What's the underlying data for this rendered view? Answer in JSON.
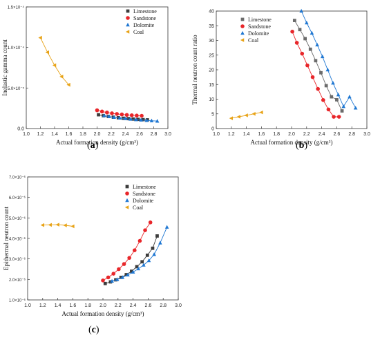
{
  "panels": {
    "a": "a",
    "b": "b",
    "c": "c"
  },
  "chart_data": [
    {
      "id": "a",
      "type": "scatter",
      "xlabel": "Actual formation density (g/cm³)",
      "ylabel": "Inelastic gamma count",
      "xlim": [
        1.0,
        3.0
      ],
      "xticks": [
        "1.0",
        "1.2",
        "1.4",
        "1.6",
        "1.8",
        "2.0",
        "2.2",
        "2.4",
        "2.6",
        "2.8",
        "3.0"
      ],
      "ylim": [
        0,
        0.00015
      ],
      "yticks": [
        {
          "v": 0,
          "label": "0.0"
        },
        {
          "v": 5e-05,
          "label": "5.0×10⁻⁵"
        },
        {
          "v": 0.0001,
          "label": "1.0×10⁻⁴"
        },
        {
          "v": 0.00015,
          "label": "1.5×10⁻⁴"
        }
      ],
      "legend_position": "top-right",
      "series": [
        {
          "name": "Limestone",
          "color": "#3c3c3c",
          "marker": "square",
          "x": [
            2.02,
            2.09,
            2.16,
            2.23,
            2.3,
            2.37,
            2.44,
            2.51,
            2.58,
            2.65,
            2.71
          ],
          "y": [
            1.7e-05,
            1.58e-05,
            1.48e-05,
            1.4e-05,
            1.33e-05,
            1.27e-05,
            1.22e-05,
            1.17e-05,
            1.13e-05,
            1.1e-05,
            1.07e-05
          ]
        },
        {
          "name": "Sandstone",
          "color": "#e8262a",
          "marker": "circle",
          "x": [
            2.0,
            2.07,
            2.14,
            2.21,
            2.28,
            2.35,
            2.42,
            2.49,
            2.56,
            2.63
          ],
          "y": [
            2.25e-05,
            2.1e-05,
            1.98e-05,
            1.88e-05,
            1.8e-05,
            1.74e-05,
            1.68e-05,
            1.64e-05,
            1.6e-05,
            1.57e-05
          ]
        },
        {
          "name": "Dolomite",
          "color": "#1f77d2",
          "marker": "triangle-up",
          "x": [
            2.1,
            2.17,
            2.24,
            2.32,
            2.4,
            2.47,
            2.55,
            2.62,
            2.7,
            2.77,
            2.85
          ],
          "y": [
            1.6e-05,
            1.48e-05,
            1.38e-05,
            1.3e-05,
            1.22e-05,
            1.16e-05,
            1.1e-05,
            1.05e-05,
            1e-05,
            9.6e-06,
            9.2e-06
          ]
        },
        {
          "name": "Coal",
          "color": "#e8a317",
          "marker": "triangle-left",
          "x": [
            1.2,
            1.3,
            1.4,
            1.5,
            1.6
          ],
          "y": [
            0.000112,
            9.4e-05,
            7.8e-05,
            6.4e-05,
            5.4e-05
          ]
        }
      ]
    },
    {
      "id": "b",
      "type": "scatter",
      "xlabel": "Actual formation density (g/cm³)",
      "ylabel": "Thermal neutron count ratio",
      "xlim": [
        1.0,
        3.0
      ],
      "xticks": [
        "1.0",
        "1.2",
        "1.4",
        "1.6",
        "1.8",
        "2.0",
        "2.2",
        "2.4",
        "2.6",
        "2.8",
        "3.0"
      ],
      "ylim": [
        0,
        40
      ],
      "yticks": [
        {
          "v": 0,
          "label": "0"
        },
        {
          "v": 5,
          "label": "5"
        },
        {
          "v": 10,
          "label": "10"
        },
        {
          "v": 15,
          "label": "15"
        },
        {
          "v": 20,
          "label": "20"
        },
        {
          "v": 25,
          "label": "25"
        },
        {
          "v": 30,
          "label": "30"
        },
        {
          "v": 35,
          "label": "35"
        },
        {
          "v": 40,
          "label": "40"
        }
      ],
      "legend_position": "top-left",
      "series": [
        {
          "name": "Limestone",
          "color": "#6b6b6b",
          "marker": "square",
          "x": [
            2.04,
            2.11,
            2.18,
            2.25,
            2.32,
            2.39,
            2.46,
            2.53,
            2.6,
            2.67
          ],
          "y": [
            36.8,
            33.7,
            30.6,
            27.0,
            23.1,
            19.0,
            14.6,
            10.8,
            9.8,
            6.0
          ]
        },
        {
          "name": "Sandstone",
          "color": "#e8262a",
          "marker": "circle",
          "x": [
            2.01,
            2.07,
            2.14,
            2.21,
            2.28,
            2.35,
            2.42,
            2.49,
            2.56,
            2.63
          ],
          "y": [
            33.0,
            29.2,
            25.5,
            21.5,
            17.5,
            13.5,
            9.7,
            6.5,
            4.0,
            4.0
          ]
        },
        {
          "name": "Dolomite",
          "color": "#1f77d2",
          "marker": "triangle-up",
          "x": [
            2.13,
            2.2,
            2.27,
            2.34,
            2.41,
            2.48,
            2.55,
            2.62,
            2.69,
            2.77,
            2.85
          ],
          "y": [
            40.0,
            36.0,
            32.5,
            28.5,
            24.5,
            20.0,
            15.5,
            11.5,
            7.5,
            10.8,
            7.0
          ]
        },
        {
          "name": "Coal",
          "color": "#e8a317",
          "marker": "triangle-left",
          "x": [
            1.2,
            1.3,
            1.4,
            1.5,
            1.6
          ],
          "y": [
            3.5,
            4.0,
            4.5,
            5.0,
            5.5
          ]
        }
      ]
    },
    {
      "id": "c",
      "type": "scatter",
      "xlabel": "Actual formation density (g/cm³)",
      "ylabel": "Epithermal neutron count",
      "xlim": [
        1.0,
        3.0
      ],
      "xticks": [
        "1.0",
        "1.2",
        "1.4",
        "1.6",
        "1.8",
        "2.0",
        "2.2",
        "2.4",
        "2.6",
        "2.8",
        "3.0"
      ],
      "ylim": [
        1e-06,
        7e-06
      ],
      "yticks": [
        {
          "v": 1e-06,
          "label": "1.0×10⁻⁶"
        },
        {
          "v": 2e-06,
          "label": "2.0×10⁻⁶"
        },
        {
          "v": 3e-06,
          "label": "3.0×10⁻⁶"
        },
        {
          "v": 4e-06,
          "label": "4.0×10⁻⁶"
        },
        {
          "v": 5e-06,
          "label": "5.0×10⁻⁶"
        },
        {
          "v": 6e-06,
          "label": "6.0×10⁻⁶"
        },
        {
          "v": 7e-06,
          "label": "7.0×10⁻⁶"
        }
      ],
      "legend_position": "top-right",
      "series": [
        {
          "name": "Limestone",
          "color": "#3c3c3c",
          "marker": "square",
          "x": [
            2.03,
            2.1,
            2.17,
            2.24,
            2.31,
            2.38,
            2.45,
            2.52,
            2.59,
            2.66,
            2.72
          ],
          "y": [
            1.8e-06,
            1.88e-06,
            1.98e-06,
            2.1e-06,
            2.23e-06,
            2.4e-06,
            2.62e-06,
            2.86e-06,
            3.18e-06,
            3.52e-06,
            4.12e-06
          ]
        },
        {
          "name": "Sandstone",
          "color": "#e8262a",
          "marker": "circle",
          "x": [
            2.0,
            2.07,
            2.14,
            2.21,
            2.28,
            2.35,
            2.42,
            2.49,
            2.56,
            2.63
          ],
          "y": [
            1.95e-06,
            2.1e-06,
            2.28e-06,
            2.5e-06,
            2.75e-06,
            3.05e-06,
            3.42e-06,
            3.88e-06,
            4.4e-06,
            4.78e-06
          ]
        },
        {
          "name": "Dolomite",
          "color": "#1f77d2",
          "marker": "triangle-up",
          "x": [
            2.12,
            2.19,
            2.26,
            2.33,
            2.4,
            2.47,
            2.54,
            2.61,
            2.68,
            2.76,
            2.85
          ],
          "y": [
            1.92e-06,
            2e-06,
            2.1e-06,
            2.22e-06,
            2.36e-06,
            2.52e-06,
            2.7e-06,
            2.92e-06,
            3.22e-06,
            3.78e-06,
            4.55e-06
          ]
        },
        {
          "name": "Coal",
          "color": "#e8a317",
          "marker": "triangle-left",
          "x": [
            1.2,
            1.3,
            1.4,
            1.5,
            1.6
          ],
          "y": [
            4.65e-06,
            4.66e-06,
            4.67e-06,
            4.64e-06,
            4.59e-06
          ]
        }
      ]
    }
  ]
}
